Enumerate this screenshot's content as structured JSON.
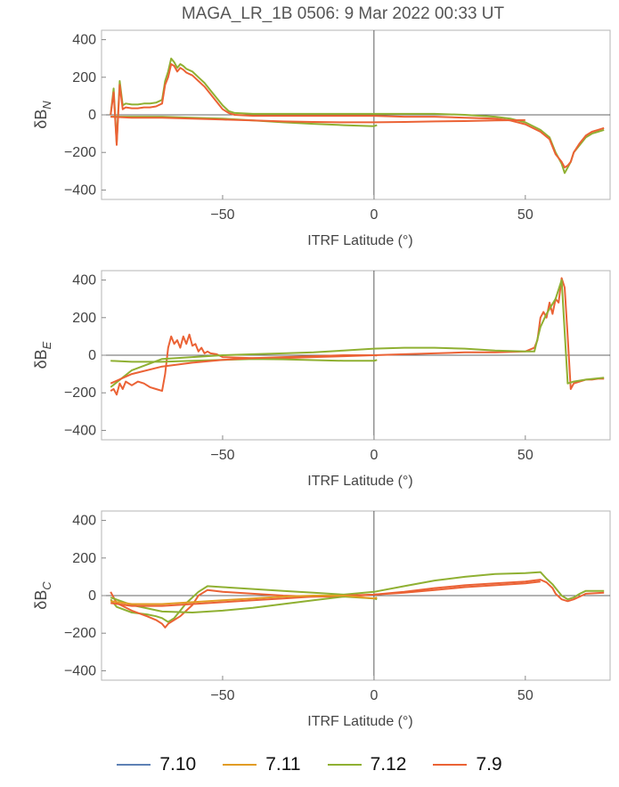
{
  "title": "MAGA_LR_1B 0506: 9 Mar 2022 00:33 UT",
  "colors": {
    "7.10": "#5e81b5",
    "7.11": "#e19c24",
    "7.12": "#8fb032",
    "7.9": "#eb6235"
  },
  "legend": [
    {
      "label": "7.10",
      "color": "#5e81b5"
    },
    {
      "label": "7.11",
      "color": "#e19c24"
    },
    {
      "label": "7.12",
      "color": "#8fb032"
    },
    {
      "label": "7.9",
      "color": "#eb6235"
    }
  ],
  "chart_data": [
    {
      "type": "line",
      "title": "MAGA_LR_1B 0506: 9 Mar 2022 00:33 UT",
      "xlabel": "ITRF Latitude (°)",
      "ylabel_main": "δB",
      "ylabel_sub": "N",
      "xlim": [
        -90,
        78
      ],
      "ylim": [
        -450,
        450
      ],
      "xticks": [
        -50,
        0,
        50
      ],
      "yticks": [
        -400,
        -200,
        0,
        200,
        400
      ],
      "series": [
        {
          "name": "7.12",
          "x": [
            -87,
            -86,
            -85,
            -84,
            -83,
            -82,
            -80,
            -78,
            -76,
            -74,
            -72,
            -70,
            -69,
            -68,
            -67,
            -66,
            -65,
            -64,
            -63,
            -62,
            -60,
            -58,
            -56,
            -54,
            -52,
            -50,
            -48,
            -46,
            -40,
            -30,
            -20,
            -10,
            0,
            10,
            20,
            30,
            40,
            45,
            50,
            55,
            58,
            60,
            62,
            63,
            64,
            65,
            66,
            68,
            70,
            72,
            74,
            76
          ],
          "y": [
            0,
            140,
            -150,
            180,
            50,
            60,
            55,
            55,
            60,
            60,
            65,
            80,
            180,
            230,
            300,
            280,
            250,
            270,
            260,
            245,
            230,
            200,
            170,
            130,
            90,
            50,
            20,
            10,
            5,
            5,
            5,
            5,
            5,
            5,
            5,
            0,
            -10,
            -20,
            -40,
            -80,
            -120,
            -200,
            -260,
            -310,
            -280,
            -250,
            -200,
            -160,
            -120,
            -100,
            -90,
            -80
          ]
        },
        {
          "name": "7.9",
          "x": [
            -87,
            -86,
            -85,
            -84,
            -83,
            -82,
            -80,
            -78,
            -76,
            -74,
            -72,
            -70,
            -69,
            -68,
            -67,
            -66,
            -65,
            -64,
            -63,
            -62,
            -60,
            -58,
            -56,
            -54,
            -52,
            -50,
            -48,
            -46,
            -40,
            -30,
            -20,
            -10,
            0,
            10,
            20,
            30,
            40,
            45,
            50,
            55,
            58,
            60,
            62,
            63,
            64,
            65,
            66,
            68,
            70,
            72,
            74,
            76
          ],
          "y": [
            0,
            120,
            -160,
            160,
            30,
            40,
            35,
            35,
            40,
            40,
            45,
            60,
            160,
            200,
            270,
            260,
            230,
            250,
            240,
            225,
            210,
            180,
            150,
            110,
            70,
            30,
            10,
            0,
            -5,
            -5,
            -5,
            -5,
            -5,
            -10,
            -10,
            -15,
            -20,
            -30,
            -50,
            -90,
            -130,
            -210,
            -250,
            -280,
            -270,
            -250,
            -200,
            -150,
            -110,
            -90,
            -80,
            -70
          ]
        },
        {
          "name": "7.12 ",
          "x": [
            -87,
            -80,
            -70,
            -60,
            -50,
            -40,
            -30,
            -20,
            -10,
            0,
            1
          ],
          "y": [
            -10,
            -10,
            -10,
            -15,
            -20,
            -30,
            -40,
            -48,
            -55,
            -60,
            -55
          ]
        },
        {
          "name": "7.9 ",
          "x": [
            -87,
            -80,
            -70,
            -60,
            -50,
            -40,
            -30,
            -20,
            -10,
            0,
            10,
            20,
            30,
            40,
            50
          ],
          "y": [
            -10,
            -15,
            -15,
            -20,
            -25,
            -30,
            -35,
            -38,
            -40,
            -40,
            -38,
            -35,
            -33,
            -30,
            -28
          ]
        }
      ]
    },
    {
      "type": "line",
      "xlabel": "ITRF Latitude (°)",
      "ylabel_main": "δB",
      "ylabel_sub": "E",
      "xlim": [
        -90,
        78
      ],
      "ylim": [
        -450,
        450
      ],
      "xticks": [
        -50,
        0,
        50
      ],
      "yticks": [
        -400,
        -200,
        0,
        200,
        400
      ],
      "series": [
        {
          "name": "7.9",
          "x": [
            -87,
            -86,
            -85,
            -84,
            -83,
            -82,
            -80,
            -78,
            -76,
            -74,
            -72,
            -70,
            -69,
            -68,
            -67,
            -66,
            -65,
            -64,
            -63,
            -62,
            -61,
            -60,
            -59,
            -58,
            -57,
            -56,
            -55,
            -54,
            -52,
            -50,
            -40,
            -30,
            -20,
            -10,
            0,
            10,
            20,
            30,
            40,
            50,
            53,
            54,
            55,
            56,
            57,
            58,
            59,
            60,
            61,
            62,
            63,
            64,
            65,
            66,
            68,
            70,
            72,
            74,
            76
          ],
          "y": [
            -190,
            -180,
            -210,
            -150,
            -180,
            -140,
            -160,
            -140,
            -150,
            -170,
            -180,
            -190,
            -100,
            40,
            100,
            60,
            80,
            40,
            100,
            60,
            110,
            50,
            60,
            20,
            40,
            10,
            20,
            10,
            5,
            -10,
            -15,
            -15,
            -10,
            -5,
            0,
            5,
            10,
            15,
            15,
            20,
            40,
            80,
            200,
            230,
            200,
            280,
            220,
            300,
            280,
            410,
            360,
            100,
            -180,
            -150,
            -140,
            -130,
            -130,
            -125,
            -125
          ]
        },
        {
          "name": "7.12",
          "x": [
            -87,
            -80,
            -70,
            -60,
            -50,
            -40,
            -30,
            -20,
            -10,
            0,
            10,
            20,
            30,
            40,
            50,
            53,
            55,
            57,
            60,
            62,
            64,
            66,
            70,
            76
          ],
          "y": [
            -170,
            -80,
            -20,
            -10,
            0,
            5,
            10,
            15,
            25,
            35,
            40,
            40,
            35,
            25,
            20,
            20,
            150,
            220,
            300,
            400,
            -150,
            -140,
            -130,
            -120
          ]
        },
        {
          "name": "7.12 ",
          "x": [
            -87,
            -80,
            -70,
            -60,
            -50,
            -40,
            -30,
            -20,
            -10,
            0,
            1
          ],
          "y": [
            -30,
            -35,
            -35,
            -30,
            -25,
            -20,
            -22,
            -26,
            -30,
            -30,
            -25
          ]
        },
        {
          "name": "7.9 ",
          "x": [
            -87,
            -80,
            -70,
            -60,
            -50,
            -40,
            -30,
            -20,
            -10,
            0,
            1
          ],
          "y": [
            -150,
            -100,
            -60,
            -40,
            -25,
            -15,
            -10,
            -5,
            0,
            0,
            -2
          ]
        }
      ]
    },
    {
      "type": "line",
      "xlabel": "ITRF Latitude (°)",
      "ylabel_main": "δB",
      "ylabel_sub": "C",
      "xlim": [
        -90,
        78
      ],
      "ylim": [
        -450,
        450
      ],
      "xticks": [
        -50,
        0,
        50
      ],
      "yticks": [
        -400,
        -200,
        0,
        200,
        400
      ],
      "series": [
        {
          "name": "7.12",
          "x": [
            -87,
            -85,
            -80,
            -75,
            -72,
            -70,
            -68,
            -66,
            -64,
            -62,
            -60,
            -58,
            -55,
            -50,
            -40,
            -30,
            -20,
            -10,
            0,
            10,
            20,
            30,
            40,
            50,
            55,
            57,
            59,
            60,
            62,
            64,
            66,
            68,
            70,
            72,
            76
          ],
          "y": [
            -20,
            -60,
            -90,
            -100,
            -110,
            -120,
            -140,
            -120,
            -80,
            -40,
            -10,
            20,
            50,
            45,
            35,
            25,
            15,
            5,
            20,
            50,
            80,
            100,
            115,
            120,
            125,
            90,
            60,
            40,
            0,
            -20,
            -10,
            10,
            25,
            25,
            25
          ]
        },
        {
          "name": "7.9",
          "x": [
            -87,
            -85,
            -80,
            -75,
            -72,
            -70,
            -69,
            -68,
            -66,
            -64,
            -62,
            -60,
            -58,
            -55,
            -50,
            -40,
            -30,
            -20,
            -10,
            0,
            10,
            20,
            30,
            40,
            50,
            55,
            57,
            59,
            60,
            62,
            64,
            66,
            68,
            70,
            76
          ],
          "y": [
            20,
            -40,
            -80,
            -110,
            -130,
            -150,
            -170,
            -150,
            -130,
            -110,
            -80,
            -50,
            0,
            30,
            20,
            10,
            0,
            -5,
            -5,
            5,
            20,
            40,
            55,
            65,
            75,
            85,
            70,
            40,
            10,
            -20,
            -30,
            -20,
            -5,
            10,
            15
          ]
        },
        {
          "name": "7.12 ",
          "x": [
            -87,
            -80,
            -70,
            -60,
            -50,
            -40,
            -30,
            -20,
            -10,
            0,
            1
          ],
          "y": [
            -10,
            -50,
            -85,
            -90,
            -80,
            -65,
            -45,
            -25,
            -5,
            -15,
            -20
          ]
        },
        {
          "name": "7.9 ",
          "x": [
            -87,
            -80,
            -70,
            -60,
            -50,
            -40,
            -30,
            -20,
            -10,
            0,
            10,
            20,
            30,
            40,
            50,
            55
          ],
          "y": [
            -40,
            -55,
            -55,
            -45,
            -35,
            -25,
            -15,
            -5,
            0,
            5,
            15,
            30,
            45,
            55,
            65,
            75
          ]
        },
        {
          "name": "7.11",
          "x": [
            -87,
            -80,
            -70,
            -60,
            -50,
            -40,
            -30,
            -20,
            -10,
            0,
            1
          ],
          "y": [
            -30,
            -45,
            -45,
            -35,
            -25,
            -15,
            -5,
            0,
            0,
            -15,
            -10
          ]
        }
      ]
    }
  ]
}
